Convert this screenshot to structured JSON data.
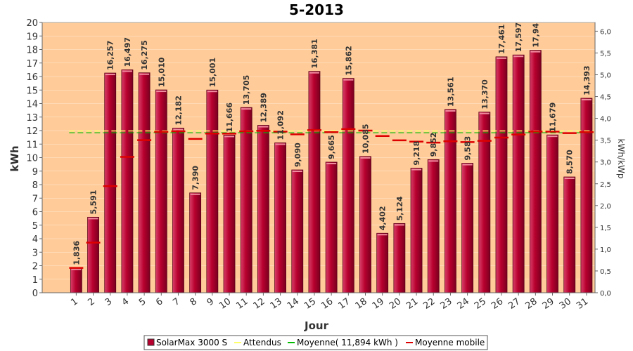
{
  "chart_data": {
    "type": "bar",
    "title": "5-2013",
    "xlabel": "Jour",
    "ylabel": "kWh",
    "y2label": "kWh/kWp",
    "ylim": [
      0,
      20
    ],
    "y2lim": [
      0,
      6.2
    ],
    "y2ticks": [
      "0,0",
      "0,5",
      "1,0",
      "1,5",
      "2,0",
      "2,5",
      "3,0",
      "3,5",
      "4,0",
      "4,5",
      "5,0",
      "5,5",
      "6,0"
    ],
    "categories": [
      "1",
      "2",
      "3",
      "4",
      "5",
      "6",
      "7",
      "8",
      "9",
      "10",
      "11",
      "12",
      "13",
      "14",
      "15",
      "16",
      "17",
      "18",
      "19",
      "20",
      "21",
      "22",
      "23",
      "24",
      "25",
      "26",
      "27",
      "28",
      "29",
      "30",
      "31"
    ],
    "series": [
      {
        "name": "SolarMax 3000 S",
        "type": "bar",
        "values": [
          1.836,
          5.591,
          16.257,
          16.497,
          16.275,
          15.01,
          12.182,
          7.39,
          15.001,
          11.666,
          13.705,
          12.389,
          11.092,
          9.09,
          16.381,
          9.665,
          15.862,
          10.085,
          4.402,
          5.124,
          9.218,
          9.852,
          13.561,
          9.583,
          13.37,
          17.461,
          17.597,
          17.94,
          11.679,
          8.57,
          14.393
        ],
        "labels": [
          "1,836",
          "5,591",
          "16,257",
          "16,497",
          "16,275",
          "15,010",
          "12,182",
          "7,390",
          "15,001",
          "11,666",
          "13,705",
          "12,389",
          "11,092",
          "9,090",
          "16,381",
          "9,665",
          "15,862",
          "10,085",
          "4,402",
          "5,124",
          "9,218",
          "9,852",
          "13,561",
          "9,583",
          "13,370",
          "17,461",
          "17,597",
          "17,94",
          "11,679",
          "8,570",
          "14,393"
        ]
      },
      {
        "name": "Attendus",
        "type": "line",
        "value": 11.894
      },
      {
        "name": "Moyenne( 11,894 kWh )",
        "type": "line",
        "value": 11.894
      },
      {
        "name": "Moyenne mobile",
        "type": "markers",
        "values": [
          1.836,
          3.71,
          7.89,
          10.05,
          11.29,
          11.91,
          11.95,
          11.38,
          11.78,
          11.77,
          11.95,
          11.99,
          11.92,
          11.72,
          12.03,
          11.88,
          12.11,
          12.0,
          11.6,
          11.28,
          11.18,
          11.11,
          11.21,
          11.15,
          11.24,
          11.48,
          11.71,
          11.93,
          11.92,
          11.81,
          11.89
        ]
      }
    ],
    "legend_position": "bottom",
    "colors": {
      "plot_bg": "#ffcc99",
      "bar": "#b8002e",
      "bar_highlight": "#e85070",
      "average_line": "#00bb00",
      "expected_line": "#ffff66",
      "moving_average": "#dd0000"
    }
  }
}
